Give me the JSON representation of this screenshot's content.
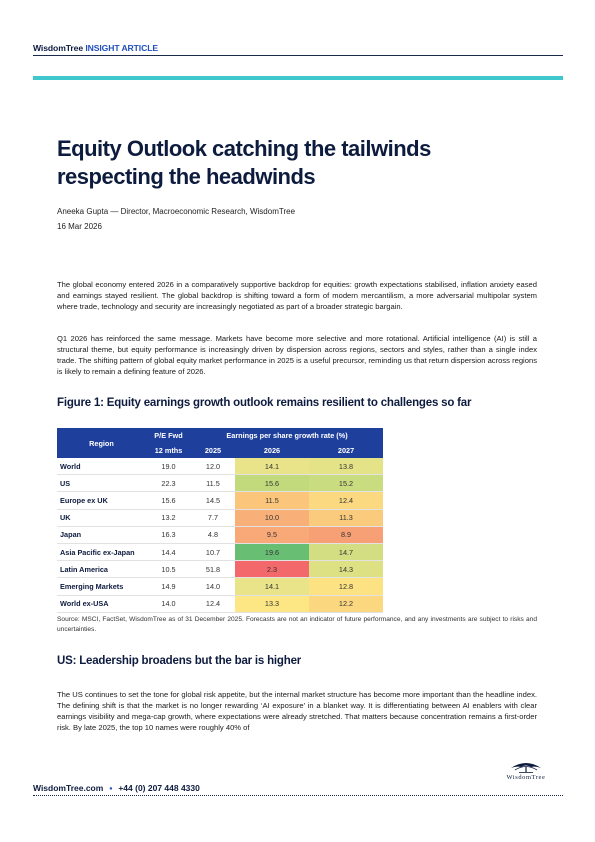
{
  "header": {
    "brand": "WisdomTree",
    "section": "INSIGHT ARTICLE"
  },
  "article": {
    "title": "Equity Outlook catching the tailwinds respecting the headwinds",
    "author": "Aneeka Gupta — Director, Macroeconomic Research, WisdomTree",
    "date": "16 Mar 2026",
    "paragraphs": [
      "The global economy entered 2026 in a comparatively supportive backdrop for equities: growth expectations stabilised, inflation anxiety eased and earnings stayed resilient. The global backdrop is shifting toward a form of modern mercantilism, a more adversarial multipolar system where trade, technology and security are increasingly negotiated as part of a broader strategic bargain.",
      "Q1 2026 has reinforced the same message. Markets have become more selective and more rotational. Artificial intelligence (AI) is still a structural theme, but equity performance is increasingly driven by dispersion across regions, sectors and styles, rather than a single index trade. The shifting pattern of global equity market performance in 2025 is a useful precursor, reminding us that return dispersion across regions is likely to remain a defining feature of 2026."
    ],
    "figure_title": "Figure 1: Equity earnings growth outlook remains resilient to challenges so far",
    "source": "Source: MSCI, FactSet, WisdomTree as of 31 December 2025. Forecasts are not an indicator of future performance, and any investments are subject to risks and uncertainties.",
    "section_heading": "US: Leadership broadens but the bar is higher",
    "section_paragraph": "The US continues to set the tone for global risk appetite, but the internal market structure has become more important than the headline index. The defining shift is that the market is no longer rewarding ‘AI exposure’ in a blanket way. It is differentiating between AI enablers with clear earnings visibility and mega-cap growth, where expectations were already stretched. That matters because concentration remains a first-order risk. By late 2025, the top 10 names were roughly 40% of"
  },
  "table": {
    "headers": {
      "region": "Region",
      "pe_line1": "P/E Fwd",
      "pe_line2": "12 mths",
      "eps_group": "Earnings per share growth rate (%)",
      "y2025": "2025",
      "y2026": "2026",
      "y2027": "2027"
    },
    "rows": [
      {
        "region": "World",
        "pe": "19.0",
        "g2025": "12.0",
        "g2026": "14.1",
        "g2027": "13.8",
        "c2026": "#e9e48a",
        "c2027": "#e5e388"
      },
      {
        "region": "US",
        "pe": "22.3",
        "g2025": "11.5",
        "g2026": "15.6",
        "g2027": "15.2",
        "c2026": "#c2da7c",
        "c2027": "#c9dc7f"
      },
      {
        "region": "Europe ex UK",
        "pe": "15.6",
        "g2025": "14.5",
        "g2026": "11.5",
        "g2027": "12.4",
        "c2026": "#fbc57c",
        "c2027": "#fbd980"
      },
      {
        "region": "UK",
        "pe": "13.2",
        "g2025": "7.7",
        "g2026": "10.0",
        "g2027": "11.3",
        "c2026": "#f9b078",
        "c2027": "#facb7d"
      },
      {
        "region": "Japan",
        "pe": "16.3",
        "g2025": "4.8",
        "g2026": "9.5",
        "g2027": "8.9",
        "c2026": "#f9a977",
        "c2027": "#f8a075"
      },
      {
        "region": "Asia Pacific ex-Japan",
        "pe": "14.4",
        "g2025": "10.7",
        "g2026": "19.6",
        "g2027": "14.7",
        "c2026": "#68bf73",
        "c2027": "#d2de81"
      },
      {
        "region": "Latin America",
        "pe": "10.5",
        "g2025": "51.8",
        "g2026": "2.3",
        "g2027": "14.3",
        "c2026": "#f3686a",
        "c2027": "#dde183"
      },
      {
        "region": "Emerging Markets",
        "pe": "14.9",
        "g2025": "14.0",
        "g2026": "14.1",
        "g2027": "12.8",
        "c2026": "#e9e48a",
        "c2027": "#fde283"
      },
      {
        "region": "World ex-USA",
        "pe": "14.0",
        "g2025": "12.4",
        "g2026": "13.3",
        "g2027": "12.2",
        "c2026": "#fde785",
        "c2027": "#fbd880"
      }
    ]
  },
  "footer": {
    "website": "WisdomTree.com",
    "phone": "+44 (0) 207 448 4330",
    "logo_text": "WisdomTree",
    "logo_icon": "tree-logo-icon"
  }
}
